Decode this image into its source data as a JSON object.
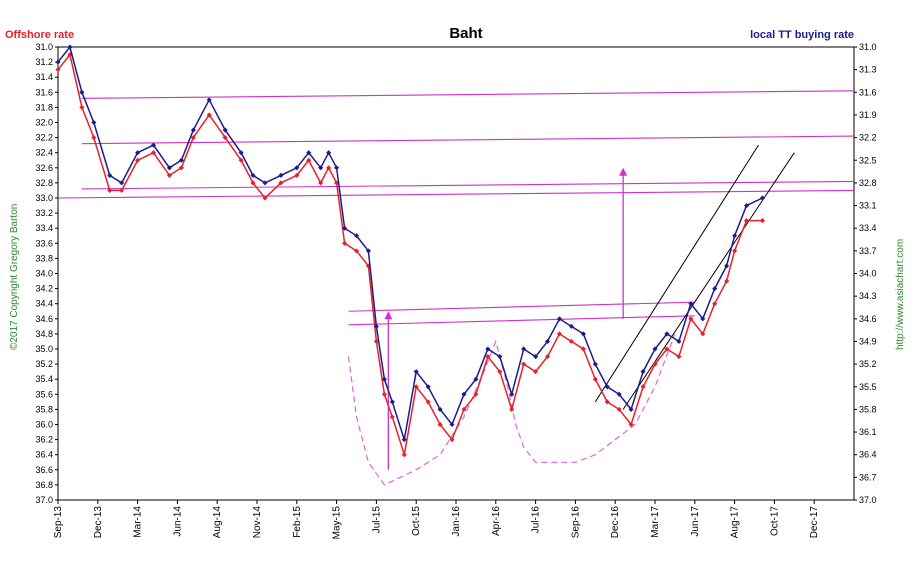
{
  "colors": {
    "offshore": "#e8202a",
    "local": "#1c1c8c",
    "resistance": "#cc33cc",
    "channel": "#000000",
    "basing": "#dd66dd",
    "copyright": "#2a8a2a",
    "source": "#2a8a2a"
  },
  "chart_data": {
    "type": "line",
    "title": "Baht",
    "left_label": "Offshore rate",
    "right_label": "local TT buying rate",
    "copyright": "©2017 Copyright Gregory Barton",
    "source": "http://www.asiachart.com",
    "y_left": {
      "inverted": true,
      "range": [
        31.0,
        37.0
      ],
      "ticks": [
        "31.0",
        "31.2",
        "31.4",
        "31.6",
        "31.8",
        "32.0",
        "32.2",
        "32.4",
        "32.6",
        "32.8",
        "33.0",
        "33.2",
        "33.4",
        "33.6",
        "33.8",
        "34.0",
        "34.2",
        "34.4",
        "34.6",
        "34.8",
        "35.0",
        "35.2",
        "35.4",
        "35.6",
        "35.8",
        "36.0",
        "36.2",
        "36.4",
        "36.6",
        "36.8",
        "37.0"
      ]
    },
    "y_right": {
      "inverted": true,
      "range": [
        31.0,
        37.0
      ],
      "ticks": [
        "31.0",
        "31.3",
        "31.6",
        "31.9",
        "32.2",
        "32.5",
        "32.8",
        "33.1",
        "33.4",
        "33.7",
        "34.0",
        "34.3",
        "34.6",
        "34.9",
        "35.2",
        "35.5",
        "35.8",
        "36.1",
        "36.4",
        "36.7",
        "37.0"
      ]
    },
    "x_ticks": [
      "Sep-13",
      "Dec-13",
      "Mar-14",
      "Jun-14",
      "Aug-14",
      "Nov-14",
      "Feb-15",
      "May-15",
      "Jul-15",
      "Oct-15",
      "Jan-16",
      "Apr-16",
      "Jul-16",
      "Sep-16",
      "Dec-16",
      "Mar-17",
      "Jun-17",
      "Aug-17",
      "Oct-17",
      "Dec-17"
    ],
    "series": [
      {
        "name": "Offshore rate",
        "x": [
          0,
          0.3,
          0.6,
          0.9,
          1.3,
          1.6,
          2.0,
          2.4,
          2.8,
          3.1,
          3.4,
          3.8,
          4.2,
          4.6,
          4.9,
          5.2,
          5.6,
          6.0,
          6.3,
          6.6,
          6.8,
          7.0,
          7.2,
          7.5,
          7.8,
          8.0,
          8.2,
          8.4,
          8.7,
          9.0,
          9.3,
          9.6,
          9.9,
          10.2,
          10.5,
          10.8,
          11.1,
          11.4,
          11.7,
          12.0,
          12.3,
          12.6,
          12.9,
          13.2,
          13.5,
          13.8,
          14.1,
          14.4,
          14.7,
          15.0,
          15.3,
          15.6,
          15.9,
          16.2,
          16.5,
          16.8,
          17.0,
          17.3,
          17.7
        ],
        "values": [
          31.3,
          31.1,
          31.8,
          32.2,
          32.9,
          32.9,
          32.5,
          32.4,
          32.7,
          32.6,
          32.2,
          31.9,
          32.2,
          32.5,
          32.8,
          33.0,
          32.8,
          32.7,
          32.5,
          32.8,
          32.6,
          32.8,
          33.6,
          33.7,
          33.9,
          34.9,
          35.6,
          35.9,
          36.4,
          35.5,
          35.7,
          36.0,
          36.2,
          35.8,
          35.6,
          35.1,
          35.3,
          35.8,
          35.2,
          35.3,
          35.1,
          34.8,
          34.9,
          35.0,
          35.4,
          35.7,
          35.8,
          36.0,
          35.5,
          35.2,
          35.0,
          35.1,
          34.6,
          34.8,
          34.4,
          34.1,
          33.7,
          33.3,
          33.3
        ]
      },
      {
        "name": "local TT buying rate",
        "x": [
          0,
          0.3,
          0.6,
          0.9,
          1.3,
          1.6,
          2.0,
          2.4,
          2.8,
          3.1,
          3.4,
          3.8,
          4.2,
          4.6,
          4.9,
          5.2,
          5.6,
          6.0,
          6.3,
          6.6,
          6.8,
          7.0,
          7.2,
          7.5,
          7.8,
          8.0,
          8.2,
          8.4,
          8.7,
          9.0,
          9.3,
          9.6,
          9.9,
          10.2,
          10.5,
          10.8,
          11.1,
          11.4,
          11.7,
          12.0,
          12.3,
          12.6,
          12.9,
          13.2,
          13.5,
          13.8,
          14.1,
          14.4,
          14.7,
          15.0,
          15.3,
          15.6,
          15.9,
          16.2,
          16.5,
          16.8,
          17.0,
          17.3,
          17.7
        ],
        "values": [
          31.2,
          31.0,
          31.6,
          32.0,
          32.7,
          32.8,
          32.4,
          32.3,
          32.6,
          32.5,
          32.1,
          31.7,
          32.1,
          32.4,
          32.7,
          32.8,
          32.7,
          32.6,
          32.4,
          32.6,
          32.4,
          32.6,
          33.4,
          33.5,
          33.7,
          34.7,
          35.4,
          35.7,
          36.2,
          35.3,
          35.5,
          35.8,
          36.0,
          35.6,
          35.4,
          35.0,
          35.1,
          35.6,
          35.0,
          35.1,
          34.9,
          34.6,
          34.7,
          34.8,
          35.2,
          35.5,
          35.6,
          35.8,
          35.3,
          35.0,
          34.8,
          34.9,
          34.4,
          34.6,
          34.2,
          33.9,
          33.5,
          33.1,
          33.0
        ]
      }
    ],
    "annotations": {
      "resistance_lines": [
        {
          "x": [
            0.6,
            20.0
          ],
          "y": [
            31.68,
            31.58
          ]
        },
        {
          "x": [
            0.6,
            20.0
          ],
          "y": [
            32.28,
            32.18
          ]
        },
        {
          "x": [
            0.6,
            20.0
          ],
          "y": [
            32.88,
            32.78
          ]
        },
        {
          "x": [
            0.0,
            20.0
          ],
          "y": [
            33.0,
            32.9
          ]
        },
        {
          "x": [
            7.3,
            16.0
          ],
          "y": [
            34.5,
            34.38
          ]
        },
        {
          "x": [
            7.3,
            16.0
          ],
          "y": [
            34.68,
            34.56
          ]
        }
      ],
      "channel_lines": [
        {
          "x": [
            13.5,
            17.6
          ],
          "y": [
            35.7,
            32.3
          ]
        },
        {
          "x": [
            14.2,
            18.5
          ],
          "y": [
            35.8,
            32.4
          ]
        }
      ],
      "arrows": [
        {
          "x": 8.3,
          "y_from": 36.6,
          "y_to": 34.5
        },
        {
          "x": 14.2,
          "y_from": 34.6,
          "y_to": 32.6
        }
      ],
      "basing_curve": {
        "x": [
          7.3,
          7.5,
          7.8,
          8.2,
          8.6,
          9.0,
          9.6,
          10.2,
          10.7,
          11.0,
          11.3,
          11.5,
          11.7,
          12.0,
          12.3,
          12.6,
          13.0,
          13.5,
          14.0,
          14.5,
          15.0,
          15.5
        ],
        "y": [
          35.1,
          35.9,
          36.5,
          36.8,
          36.7,
          36.6,
          36.4,
          35.9,
          35.3,
          34.9,
          35.5,
          36.0,
          36.3,
          36.5,
          36.5,
          36.5,
          36.5,
          36.4,
          36.2,
          36.0,
          35.5,
          34.8
        ]
      }
    }
  }
}
